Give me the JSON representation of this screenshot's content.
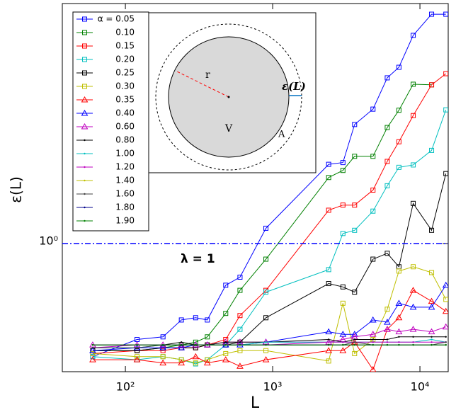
{
  "chart_data": {
    "type": "line",
    "xscale": "log",
    "yscale": "log",
    "x_label": "L",
    "y_label": "ε(L)",
    "xlim": [
      37.3,
      15560
    ],
    "ylim": [
      0.334,
      7.8
    ],
    "xticks": [
      {
        "value": 100,
        "label": "10²"
      },
      {
        "value": 1000,
        "label": "10³"
      },
      {
        "value": 10000,
        "label": "10⁴"
      }
    ],
    "yticks": [
      {
        "value": 1,
        "label": "10⁰"
      }
    ],
    "legend": "upper left",
    "reference_line": {
      "value": 1,
      "color": "#0000ff",
      "label": "λ = 1"
    },
    "inset": {
      "labels": [
        "r",
        "V",
        "A",
        "ε(L)"
      ]
    },
    "x": [
      60,
      120,
      180,
      240,
      300,
      360,
      480,
      600,
      900,
      2400,
      3000,
      3600,
      4800,
      6000,
      7200,
      9000,
      12000,
      15000
    ],
    "series": [
      {
        "name": "α = 0.05",
        "color": "#0000ff",
        "marker": "square",
        "values": [
          0.38,
          0.44,
          0.45,
          0.52,
          0.53,
          0.52,
          0.7,
          0.75,
          1.14,
          1.97,
          2.0,
          2.77,
          3.16,
          4.13,
          4.52,
          5.94,
          7.12,
          7.12
        ]
      },
      {
        "name": "0.10",
        "color": "#008000",
        "marker": "square",
        "values": [
          0.4,
          0.4,
          0.41,
          0.42,
          0.43,
          0.45,
          0.55,
          0.67,
          0.875,
          1.76,
          1.87,
          2.11,
          2.11,
          2.7,
          3.13,
          3.91,
          3.89,
          null
        ]
      },
      {
        "name": "0.15",
        "color": "#ff0000",
        "marker": "square",
        "values": [
          0.39,
          0.4,
          0.4,
          0.41,
          0.41,
          0.42,
          0.44,
          0.54,
          0.67,
          1.33,
          1.39,
          1.39,
          1.58,
          2.02,
          2.39,
          2.99,
          3.89,
          4.28
        ]
      },
      {
        "name": "0.20",
        "color": "#00bfbf",
        "marker": "square",
        "values": [
          0.38,
          0.37,
          0.38,
          0.37,
          0.357,
          0.37,
          0.42,
          0.48,
          0.66,
          0.8,
          1.09,
          1.12,
          1.32,
          1.64,
          1.92,
          1.96,
          2.22,
          3.14
        ]
      },
      {
        "name": "0.25",
        "color": "#000000",
        "marker": "square",
        "values": [
          0.4,
          0.4,
          0.41,
          0.41,
          0.41,
          0.42,
          0.42,
          0.43,
          0.53,
          0.71,
          0.69,
          0.66,
          0.875,
          0.92,
          0.82,
          1.41,
          1.12,
          1.82
        ]
      },
      {
        "name": "0.30",
        "color": "#bfbf00",
        "marker": "square",
        "values": [
          0.39,
          0.38,
          0.38,
          0.37,
          0.36,
          0.37,
          0.39,
          0.4,
          0.4,
          0.366,
          0.6,
          0.39,
          0.44,
          0.57,
          0.79,
          0.82,
          0.78,
          0.62
        ]
      },
      {
        "name": "0.35",
        "color": "#ff0000",
        "marker": "triangle",
        "values": [
          0.37,
          0.37,
          0.36,
          0.36,
          0.38,
          0.36,
          0.37,
          0.35,
          0.37,
          0.4,
          0.4,
          0.43,
          0.34,
          0.48,
          0.53,
          0.67,
          0.61,
          0.56
        ]
      },
      {
        "name": "0.40",
        "color": "#0000ff",
        "marker": "triangle",
        "values": [
          0.4,
          0.41,
          0.41,
          0.41,
          0.42,
          0.42,
          0.42,
          0.42,
          0.43,
          0.47,
          0.46,
          0.46,
          0.52,
          0.51,
          0.6,
          0.58,
          0.58,
          0.7
        ]
      },
      {
        "name": "0.60",
        "color": "#bf00bf",
        "marker": "triangle",
        "values": [
          0.42,
          0.42,
          0.42,
          0.42,
          0.42,
          0.42,
          0.43,
          0.43,
          0.43,
          0.43,
          0.44,
          0.45,
          0.46,
          0.48,
          0.47,
          0.48,
          0.47,
          0.49
        ]
      },
      {
        "name": "0.80",
        "color": "#000000",
        "marker": "dot",
        "values": [
          0.42,
          0.42,
          0.42,
          0.43,
          0.42,
          0.42,
          0.43,
          0.43,
          0.43,
          0.44,
          0.43,
          0.44,
          0.44,
          0.44,
          0.45,
          0.45,
          0.45,
          0.45
        ]
      },
      {
        "name": "1.00",
        "color": "#00bfbf",
        "marker": "dot",
        "values": [
          0.41,
          0.41,
          0.42,
          0.42,
          0.42,
          0.42,
          0.42,
          0.42,
          0.43,
          0.43,
          0.43,
          0.43,
          0.43,
          0.43,
          0.43,
          0.43,
          0.44,
          0.43
        ]
      },
      {
        "name": "1.20",
        "color": "#bf00bf",
        "marker": "dot",
        "values": [
          0.41,
          0.42,
          0.42,
          0.42,
          0.42,
          0.42,
          0.42,
          0.42,
          0.42,
          0.43,
          0.43,
          0.43,
          0.43,
          0.43,
          0.43,
          0.43,
          0.43,
          0.43
        ]
      },
      {
        "name": "1.40",
        "color": "#bfbf00",
        "marker": "dot",
        "values": [
          0.42,
          0.42,
          0.42,
          0.42,
          0.42,
          0.42,
          0.42,
          0.42,
          0.42,
          0.42,
          0.42,
          0.42,
          0.42,
          0.42,
          0.42,
          0.42,
          0.42,
          0.42
        ]
      },
      {
        "name": "1.60",
        "color": "#404040",
        "marker": "dot",
        "values": [
          0.41,
          0.41,
          0.42,
          0.42,
          0.42,
          0.42,
          0.42,
          0.42,
          0.42,
          0.42,
          0.42,
          0.43,
          0.42,
          0.42,
          0.42,
          0.42,
          0.42,
          0.43
        ]
      },
      {
        "name": "1.80",
        "color": "#00008b",
        "marker": "dot",
        "values": [
          0.42,
          0.42,
          0.42,
          0.42,
          0.42,
          0.42,
          0.42,
          0.42,
          0.42,
          0.42,
          0.42,
          0.42,
          0.42,
          0.42,
          0.42,
          0.42,
          0.42,
          0.42
        ]
      },
      {
        "name": "1.90",
        "color": "#008000",
        "marker": "dot",
        "values": [
          0.42,
          0.42,
          0.42,
          0.42,
          0.42,
          0.42,
          0.42,
          0.42,
          0.42,
          0.42,
          0.42,
          0.42,
          0.42,
          0.42,
          0.42,
          0.42,
          0.42,
          0.42
        ]
      }
    ]
  }
}
